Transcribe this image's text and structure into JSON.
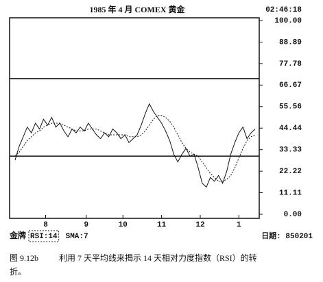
{
  "chart_data": {
    "type": "line",
    "title": "1985 年 4 月 COMEX 黄金",
    "time": "02:46:18",
    "x": [
      0,
      2,
      4,
      6,
      8,
      10,
      12,
      14,
      16,
      18,
      20,
      22,
      24,
      26,
      28,
      30,
      32,
      34,
      36,
      38,
      40,
      42,
      44,
      46,
      48,
      50,
      52,
      54,
      56,
      58,
      60,
      62,
      64,
      66,
      68,
      70,
      72,
      74,
      76,
      78,
      80,
      82,
      84,
      86,
      88,
      90,
      92,
      94,
      96,
      98,
      100,
      102,
      104,
      106,
      108,
      110,
      112,
      114,
      116,
      118
    ],
    "xlim": [
      0,
      120
    ],
    "xticks": [
      {
        "value": 15,
        "label": "8"
      },
      {
        "value": 35,
        "label": "9"
      },
      {
        "value": 53,
        "label": "10"
      },
      {
        "value": 72,
        "label": "11"
      },
      {
        "value": 91,
        "label": "12"
      },
      {
        "value": 110,
        "label": "1"
      }
    ],
    "ylim": [
      0,
      100
    ],
    "yticks": [
      {
        "value": 0,
        "label": "0.00"
      },
      {
        "value": 11.11,
        "label": "11.11"
      },
      {
        "value": 22.22,
        "label": "22.22"
      },
      {
        "value": 33.33,
        "label": "33.33"
      },
      {
        "value": 44.44,
        "label": "44.44"
      },
      {
        "value": 55.56,
        "label": "55.56"
      },
      {
        "value": 66.67,
        "label": "66.67"
      },
      {
        "value": 77.78,
        "label": "77.78"
      },
      {
        "value": 88.89,
        "label": "88.89"
      },
      {
        "value": 100,
        "label": "100.00"
      }
    ],
    "hlines": [
      30,
      70
    ],
    "series": [
      {
        "name": "RSI:14",
        "color": "#111111",
        "line_style": "solid",
        "values": [
          28,
          35,
          40,
          45,
          42,
          47,
          44,
          49,
          46,
          50,
          45,
          47,
          43,
          40,
          44,
          42,
          45,
          43,
          47,
          44,
          41,
          39,
          42,
          40,
          44,
          42,
          39,
          41,
          37,
          39,
          41,
          46,
          52,
          57,
          53,
          50,
          47,
          43,
          38,
          31,
          27,
          31,
          34,
          30,
          31,
          24,
          16,
          14,
          19,
          17,
          20,
          16,
          22,
          31,
          37,
          42,
          45,
          39,
          42,
          44
        ]
      },
      {
        "name": "SMA:7",
        "color": "#111111",
        "line_style": "dashed",
        "values": [
          30,
          32,
          35,
          38,
          40,
          42,
          43,
          45,
          46,
          47,
          47,
          47,
          46,
          45,
          44,
          43,
          43,
          43,
          44,
          44,
          44,
          43,
          42,
          41,
          41,
          41,
          41,
          41,
          40,
          40,
          40,
          41,
          43,
          46,
          49,
          51,
          51,
          50,
          48,
          45,
          41,
          37,
          34,
          32,
          31,
          30,
          27,
          24,
          21,
          19,
          17,
          17,
          18,
          20,
          24,
          29,
          34,
          38,
          40,
          41
        ]
      }
    ],
    "footer": {
      "left": "金牌",
      "date": "日期: 850201"
    }
  },
  "caption": {
    "figure": "图 9.12b",
    "text": "利用 7 天平均线来揭示 14 天相对力度指数（RSI）的转",
    "text2": "折。"
  }
}
